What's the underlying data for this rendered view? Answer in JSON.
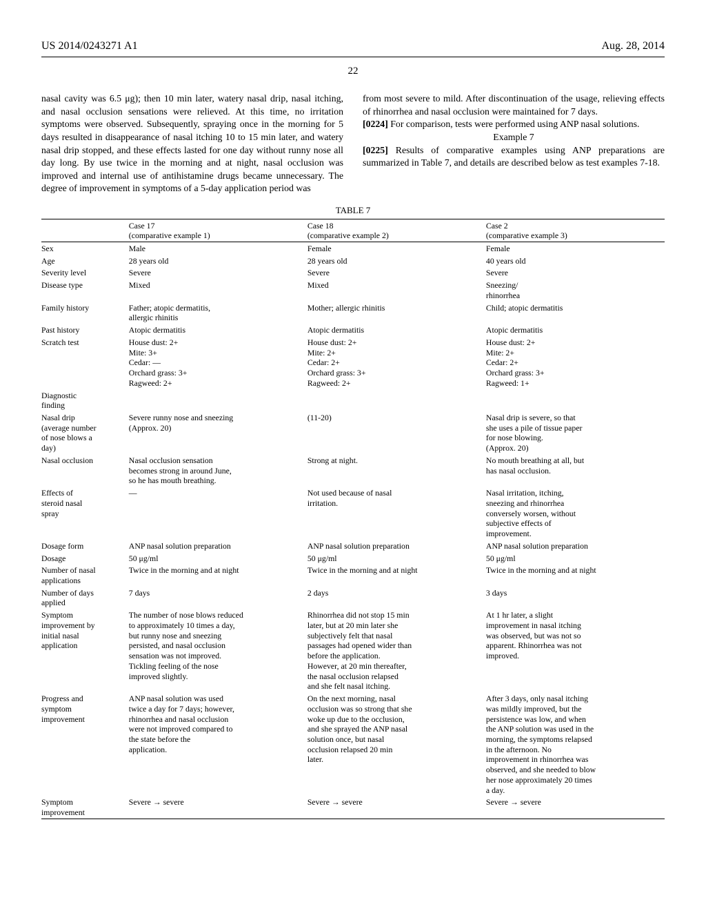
{
  "header": {
    "left": "US 2014/0243271 A1",
    "right": "Aug. 28, 2014"
  },
  "page_number": "22",
  "paragraphs": {
    "left1": "nasal cavity was 6.5 μg); then 10 min later, watery nasal drip, nasal itching, and nasal occlusion sensations were relieved. At this time, no irritation symptoms were observed. Subsequently, spraying once in the morning for 5 days resulted in disappearance of nasal itching 10 to 15 min later, and watery nasal drip stopped, and these effects lasted for one day without runny nose all day long. By use twice in the morning and at night, nasal occlusion was improved and internal use of antihistamine drugs became unnecessary. The degree of improvement in symptoms of a 5-day application period was",
    "right1": "from most severe to mild. After discontinuation of the usage, relieving effects of rhinorrhea and nasal occlusion were maintained for 7 days.",
    "p0224_num": "[0224]",
    "p0224_text": "   For comparison, tests were performed using ANP nasal solutions.",
    "example_heading": "Example 7",
    "p0225_num": "[0225]",
    "p0225_text": "   Results of comparative examples using ANP preparations are summarized in Table 7, and details are described below as test examples 7-18."
  },
  "table": {
    "caption": "TABLE 7",
    "col_headers": {
      "c1": {
        "title": "Case 17",
        "sub": "(comparative example 1)"
      },
      "c2": {
        "title": "Case 18",
        "sub": "(comparative example 2)"
      },
      "c3": {
        "title": "Case 2",
        "sub": "(comparative example 3)"
      }
    },
    "rows": {
      "sex": {
        "label": "Sex",
        "c1": "Male",
        "c2": "Female",
        "c3": "Female"
      },
      "age": {
        "label": "Age",
        "c1": "28 years old",
        "c2": "28 years old",
        "c3": "40 years old"
      },
      "severity": {
        "label": "Severity level",
        "c1": "Severe",
        "c2": "Severe",
        "c3": "Severe"
      },
      "disease": {
        "label": "Disease type",
        "c1": "Mixed",
        "c2": "Mixed",
        "c3": "Sneezing/\nrhinorrhea"
      },
      "family": {
        "label": "Family history",
        "c1": "Father; atopic dermatitis,\nallergic rhinitis",
        "c2": "Mother; allergic rhinitis",
        "c3": "Child; atopic dermatitis"
      },
      "past": {
        "label": "Past history",
        "c1": "Atopic dermatitis",
        "c2": "Atopic dermatitis",
        "c3": "Atopic dermatitis"
      },
      "scratch": {
        "label": "Scratch test",
        "c1": "House dust: 2+\nMite: 3+\nCedar: —\nOrchard grass: 3+\nRagweed: 2+",
        "c2": "House dust: 2+\nMite: 2+\nCedar: 2+\nOrchard grass: 3+\nRagweed: 2+",
        "c3": "House dust: 2+\nMite: 2+\nCedar: 2+\nOrchard grass: 3+\nRagweed: 1+"
      },
      "diag": {
        "label": "Diagnostic\nfinding",
        "c1": "",
        "c2": "",
        "c3": ""
      },
      "nasaldrip": {
        "label": "Nasal drip\n(average number\nof nose blows a\nday)",
        "c1": "Severe runny nose and sneezing\n(Approx. 20)",
        "c2": "(11-20)",
        "c3": "Nasal drip is severe, so that\nshe uses a pile of tissue paper\nfor nose blowing.\n(Approx. 20)"
      },
      "occlusion": {
        "label": "Nasal occlusion",
        "c1": "Nasal occlusion sensation\nbecomes strong in around June,\nso he has mouth breathing.",
        "c2": "Strong at night.",
        "c3": "No mouth breathing at all, but\nhas nasal occlusion."
      },
      "steroid": {
        "label": "Effects of\nsteroid nasal\nspray",
        "c1": "—",
        "c2": "Not used because of nasal\nirritation.",
        "c3": "Nasal irritation, itching,\nsneezing and rhinorrhea\nconversely worsen, without\nsubjective effects of\nimprovement."
      },
      "dosageform": {
        "label": "Dosage form",
        "c1": "ANP nasal solution preparation",
        "c2": "ANP nasal solution preparation",
        "c3": "ANP nasal solution preparation"
      },
      "dosage": {
        "label": "Dosage",
        "c1": "50 μg/ml",
        "c2": "50 μg/ml",
        "c3": "50 μg/ml"
      },
      "numapp": {
        "label": "Number of nasal\napplications",
        "c1": "Twice in the morning and at night",
        "c2": "Twice in the morning and at night",
        "c3": "Twice in the morning and at night"
      },
      "numdays": {
        "label": "Number of days\napplied",
        "c1": "7 days",
        "c2": "2 days",
        "c3": "3 days"
      },
      "initial": {
        "label": "Symptom\nimprovement by\ninitial nasal\napplication",
        "c1": "The number of nose blows reduced\nto approximately 10 times a day,\nbut runny nose and sneezing\npersisted, and nasal occlusion\nsensation was not improved.\nTickling feeling of the nose\nimproved slightly.",
        "c2": "Rhinorrhea did not stop 15 min\nlater, but at 20 min later she\nsubjectively felt that nasal\npassages had opened wider than\nbefore the application.\nHowever, at 20 min thereafter,\nthe nasal occlusion relapsed\nand she felt nasal itching.",
        "c3": "At 1 hr later, a slight\nimprovement in nasal itching\nwas observed, but was not so\napparent. Rhinorrhea was not\nimproved."
      },
      "progress": {
        "label": "Progress and\nsymptom\nimprovement",
        "c1": "ANP nasal solution was used\ntwice a day for 7 days; however,\nrhinorrhea and nasal occlusion\nwere not improved compared to\nthe state before the\napplication.",
        "c2": "On the next morning, nasal\nocclusion was so strong that she\nwoke up due to the occlusion,\nand she sprayed the ANP nasal\nsolution once, but nasal\nocclusion relapsed 20 min\nlater.",
        "c3": "After 3 days, only nasal itching\nwas mildly improved, but the\npersistence was low, and when\nthe ANP solution was used in the\nmorning, the symptoms relapsed\nin the afternoon. No\nimprovement in rhinorrhea was\nobserved, and she needed to blow\nher nose approximately 20 times\na day."
      },
      "systimp": {
        "label": "Symptom\nimprovement",
        "c1": "Severe → severe",
        "c2": "Severe → severe",
        "c3": "Severe → severe"
      }
    }
  }
}
